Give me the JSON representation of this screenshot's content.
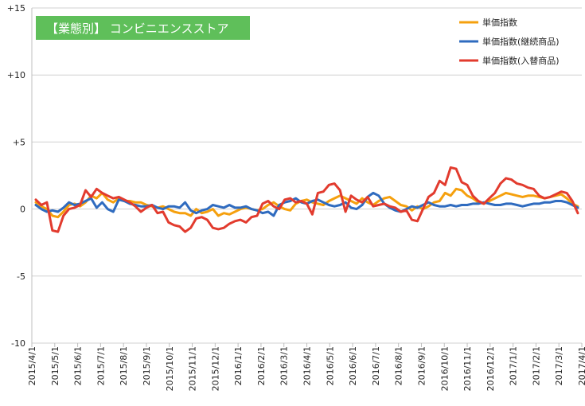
{
  "chart_data": {
    "type": "line",
    "title": "【業態別】 コンビニエンスストア",
    "title_bg": "#5fbf5a",
    "ylim": [
      -10,
      15
    ],
    "y_ticks": [
      15,
      10,
      5,
      0,
      -5,
      -10
    ],
    "y_tick_labels": [
      "+15",
      "+10",
      "+5",
      "0",
      "-5",
      "-10"
    ],
    "x_tick_labels": [
      "2015/4/1",
      "2015/5/1",
      "2015/6/1",
      "2015/7/1",
      "2015/8/1",
      "2015/9/1",
      "2015/10/1",
      "2015/11/1",
      "2015/12/1",
      "2016/1/1",
      "2016/2/1",
      "2016/3/1",
      "2016/4/1",
      "2016/5/1",
      "2016/6/1",
      "2016/7/1",
      "2016/8/1",
      "2016/9/1",
      "2016/10/1",
      "2016/11/1",
      "2016/12/1",
      "2017/1/1",
      "2017/2/1",
      "2017/3/1",
      "2017/4/1"
    ],
    "grid": "horizontal",
    "legend_position": "top-right",
    "series": [
      {
        "name": "単価指数",
        "color": "#f5a00e",
        "values": [
          0.5,
          0.2,
          0.0,
          -0.5,
          -0.6,
          -0.2,
          0.3,
          0.4,
          0.2,
          0.5,
          1.0,
          0.8,
          1.2,
          0.7,
          0.5,
          0.8,
          0.6,
          0.6,
          0.5,
          0.5,
          0.3,
          0.2,
          0.1,
          0.2,
          0.0,
          -0.2,
          -0.3,
          -0.3,
          -0.5,
          0.0,
          -0.3,
          -0.2,
          0.0,
          -0.5,
          -0.3,
          -0.4,
          -0.2,
          0.0,
          0.1,
          0.0,
          -0.1,
          0.0,
          0.3,
          0.5,
          0.2,
          0.0,
          -0.1,
          0.4,
          0.6,
          0.7,
          0.5,
          0.4,
          0.3,
          0.6,
          0.8,
          1.0,
          0.8,
          0.6,
          0.4,
          0.8,
          0.5,
          0.3,
          0.6,
          0.8,
          0.9,
          0.6,
          0.3,
          0.2,
          -0.1,
          0.2,
          0.0,
          0.2,
          0.5,
          0.6,
          1.2,
          1.0,
          1.5,
          1.4,
          1.0,
          0.8,
          0.5,
          0.4,
          0.6,
          0.8,
          1.0,
          1.2,
          1.1,
          1.0,
          0.9,
          1.0,
          1.0,
          0.9,
          0.8,
          0.9,
          1.0,
          1.1,
          0.8,
          0.4,
          0.2
        ]
      },
      {
        "name": "単価指数(継続商品)",
        "color": "#2f6bbf",
        "values": [
          0.3,
          0.0,
          -0.2,
          -0.1,
          -0.2,
          0.1,
          0.5,
          0.3,
          0.4,
          0.6,
          0.8,
          0.1,
          0.5,
          0.0,
          -0.2,
          0.7,
          0.6,
          0.4,
          0.3,
          0.2,
          0.2,
          0.3,
          0.1,
          0.0,
          0.2,
          0.2,
          0.1,
          0.5,
          -0.1,
          -0.3,
          -0.1,
          0.0,
          0.3,
          0.2,
          0.1,
          0.3,
          0.1,
          0.1,
          0.2,
          0.0,
          -0.1,
          -0.3,
          -0.2,
          -0.5,
          0.3,
          0.5,
          0.6,
          0.8,
          0.5,
          0.4,
          0.6,
          0.7,
          0.5,
          0.3,
          0.2,
          0.3,
          0.5,
          0.1,
          0.0,
          0.3,
          0.9,
          1.2,
          1.0,
          0.4,
          0.1,
          -0.1,
          -0.2,
          0.0,
          0.2,
          0.1,
          0.3,
          0.5,
          0.3,
          0.2,
          0.2,
          0.3,
          0.2,
          0.3,
          0.3,
          0.4,
          0.4,
          0.5,
          0.4,
          0.3,
          0.3,
          0.4,
          0.4,
          0.3,
          0.2,
          0.3,
          0.4,
          0.4,
          0.5,
          0.5,
          0.6,
          0.6,
          0.5,
          0.3,
          0.1
        ]
      },
      {
        "name": "単価指数(入替商品)",
        "color": "#e23b2e",
        "values": [
          0.7,
          0.3,
          0.5,
          -1.6,
          -1.7,
          -0.5,
          0.0,
          0.1,
          0.3,
          1.4,
          0.9,
          1.5,
          1.2,
          1.0,
          0.8,
          0.9,
          0.7,
          0.5,
          0.2,
          -0.2,
          0.1,
          0.3,
          -0.3,
          -0.2,
          -1.0,
          -1.2,
          -1.3,
          -1.7,
          -1.4,
          -0.7,
          -0.6,
          -0.8,
          -1.4,
          -1.5,
          -1.4,
          -1.1,
          -0.9,
          -0.8,
          -1.0,
          -0.6,
          -0.5,
          0.4,
          0.6,
          0.2,
          0.0,
          0.7,
          0.8,
          0.5,
          0.6,
          0.4,
          -0.4,
          1.2,
          1.3,
          1.8,
          1.9,
          1.4,
          -0.2,
          1.0,
          0.7,
          0.5,
          0.9,
          0.2,
          0.3,
          0.4,
          0.2,
          0.1,
          -0.2,
          -0.1,
          -0.8,
          -0.9,
          0.0,
          0.9,
          1.2,
          2.1,
          1.8,
          3.1,
          3.0,
          2.0,
          1.8,
          1.0,
          0.6,
          0.4,
          0.8,
          1.2,
          1.9,
          2.3,
          2.2,
          1.9,
          1.8,
          1.6,
          1.5,
          1.0,
          0.8,
          0.9,
          1.1,
          1.3,
          1.2,
          0.6,
          -0.3
        ]
      }
    ]
  }
}
